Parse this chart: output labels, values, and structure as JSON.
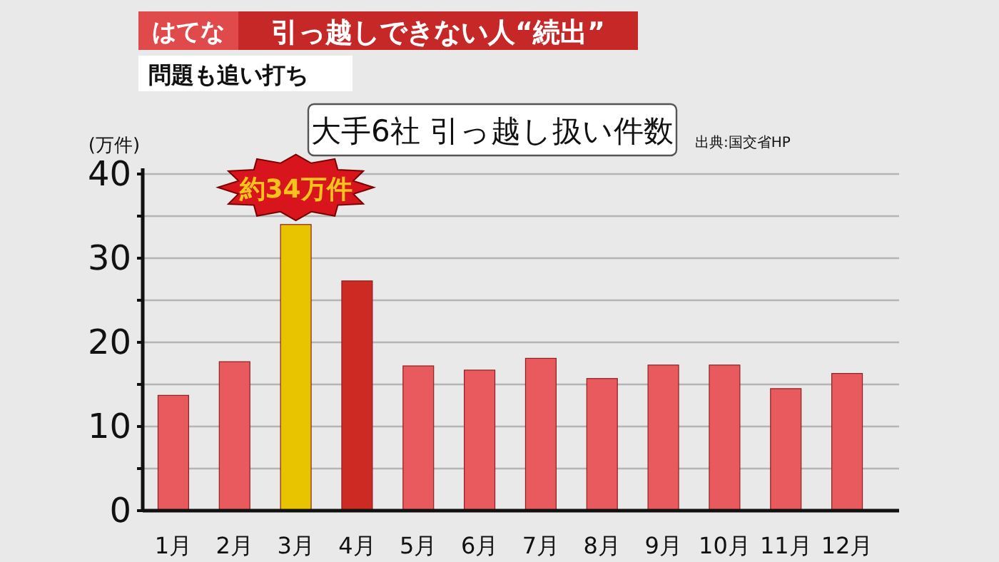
{
  "chart_data": {
    "type": "bar",
    "title": "大手6社 引っ越し扱い件数",
    "ylabel": "(万件)",
    "annotations": [
      "はてな",
      "引っ越しできない人“続出”",
      "問題も追い打ち",
      "出典:国交省HP",
      {
        "text": "約34万件",
        "x": "3月",
        "y": 34
      }
    ],
    "categories": [
      "1月",
      "2月",
      "3月",
      "4月",
      "5月",
      "6月",
      "7月",
      "8月",
      "9月",
      "10月",
      "11月",
      "12月"
    ],
    "values": [
      13.7,
      17.7,
      34,
      27.3,
      17.2,
      16.7,
      18.1,
      15.7,
      17.3,
      17.3,
      14.5,
      16.3
    ],
    "colors": [
      "#e85a5e",
      "#e85a5e",
      "#e8c400",
      "#cc2a22",
      "#e85a5e",
      "#e85a5e",
      "#e85a5e",
      "#e85a5e",
      "#e85a5e",
      "#e85a5e",
      "#e85a5e",
      "#e85a5e"
    ],
    "ylim": [
      0,
      40
    ],
    "yticks": [
      0,
      {
        "value": 5,
        "label": null
      },
      10,
      {
        "value": 15,
        "label": null
      },
      20,
      {
        "value": 25,
        "label": null
      },
      30,
      {
        "value": 35,
        "label": null
      },
      40
    ],
    "grid": "y"
  }
}
